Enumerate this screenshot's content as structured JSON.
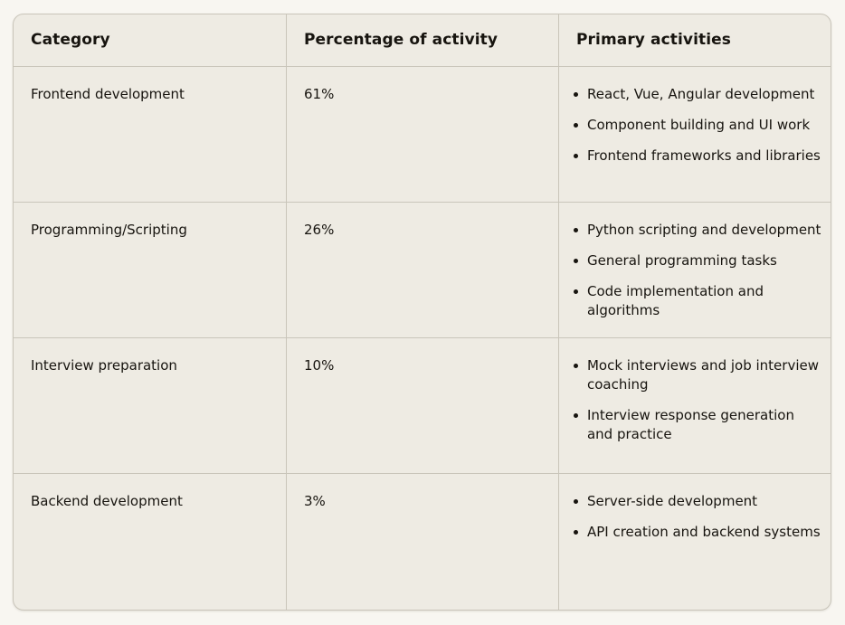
{
  "table": {
    "columns": [
      "Category",
      "Percentage of activity",
      "Primary activities"
    ],
    "rows": [
      {
        "category": "Frontend development",
        "percentage": "61%",
        "activities": [
          "React, Vue, Angular development",
          "Component building and UI work",
          "Frontend frameworks and libraries"
        ]
      },
      {
        "category": "Programming/Scripting",
        "percentage": "26%",
        "activities": [
          "Python scripting and development",
          "General programming tasks",
          "Code implementation and algorithms"
        ]
      },
      {
        "category": "Interview preparation",
        "percentage": "10%",
        "activities": [
          "Mock interviews and job interview coaching",
          "Interview response generation and practice"
        ]
      },
      {
        "category": "Backend development",
        "percentage": "3%",
        "activities": [
          "Server-side development",
          "API creation and backend systems"
        ]
      }
    ]
  },
  "colors": {
    "page_background": "#f8f6f1",
    "table_background": "#eeebe3",
    "border": "#c9c5ba",
    "text": "#17140f"
  },
  "chart_data": {
    "type": "table",
    "title": "",
    "columns": [
      "Category",
      "Percentage of activity",
      "Primary activities"
    ],
    "categories": [
      "Frontend development",
      "Programming/Scripting",
      "Interview preparation",
      "Backend development"
    ],
    "values": [
      61,
      26,
      10,
      3
    ],
    "rows": [
      [
        "Frontend development",
        "61%",
        "React, Vue, Angular development; Component building and UI work; Frontend frameworks and libraries"
      ],
      [
        "Programming/Scripting",
        "26%",
        "Python scripting and development; General programming tasks; Code implementation and algorithms"
      ],
      [
        "Interview preparation",
        "10%",
        "Mock interviews and job interview coaching; Interview response generation and practice"
      ],
      [
        "Backend development",
        "3%",
        "Server-side development; API creation and backend systems"
      ]
    ]
  }
}
